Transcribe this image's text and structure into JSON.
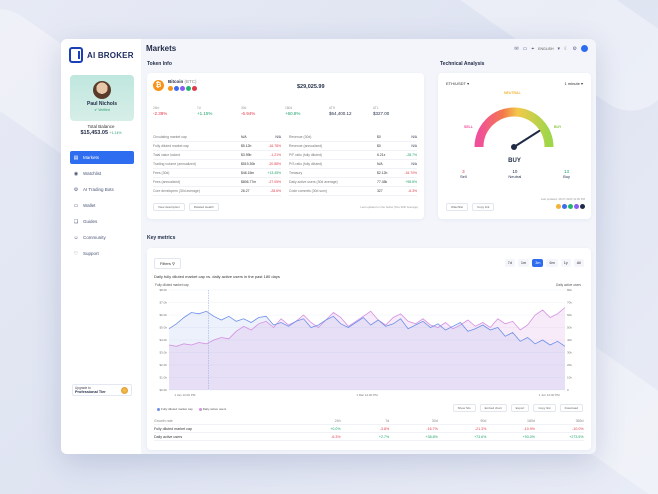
{
  "app": {
    "brand": "AI BROKER",
    "page_title": "Markets"
  },
  "topbar": {
    "language": "ENGLISH"
  },
  "profile": {
    "name": "Paul Nichols",
    "verified": "Verified"
  },
  "balance": {
    "label": "Total Balance",
    "amount": "$15,453.05",
    "change": "+1.14%"
  },
  "nav": {
    "items": [
      {
        "label": "Markets",
        "icon": "chart-icon",
        "glyph": "▤"
      },
      {
        "label": "Watchlist",
        "icon": "eye-icon",
        "glyph": "◉"
      },
      {
        "label": "AI Trading Bots",
        "icon": "bot-icon",
        "glyph": "⚙"
      },
      {
        "label": "Wallet",
        "icon": "wallet-icon",
        "glyph": "▭"
      },
      {
        "label": "Guides",
        "icon": "book-icon",
        "glyph": "❏"
      },
      {
        "label": "Community",
        "icon": "people-icon",
        "glyph": "☺"
      },
      {
        "label": "Support",
        "icon": "heart-icon",
        "glyph": "♡"
      }
    ]
  },
  "upgrade": {
    "small": "Upgrade to",
    "tier": "Professional Tier"
  },
  "token_info": {
    "section_title": "Token Info",
    "name": "Bitcoin",
    "ticker": "(BTC)",
    "price": "$29,025.99",
    "changes": [
      {
        "label": "24hr",
        "value": "-2.39%",
        "tone": "neg"
      },
      {
        "label": "7d",
        "value": "+1.15%",
        "tone": "pos"
      },
      {
        "label": "30d",
        "value": "-6.94%",
        "tone": "neg"
      },
      {
        "label": "180d",
        "value": "+60.8%",
        "tone": "pos"
      },
      {
        "label": "ATH",
        "value": "$64,400.12",
        "tone": "none"
      },
      {
        "label": "ATL",
        "value": "$327.00",
        "tone": "none"
      }
    ],
    "stats_left": [
      {
        "label": "Circulating market cap",
        "value": "N/A",
        "change": "N/A",
        "tone": "none"
      },
      {
        "label": "Fully diluted market cap",
        "value": "$5.12b",
        "change": "-16.78%",
        "tone": "neg"
      },
      {
        "label": "Total value locked",
        "value": "$3.99b",
        "change": "-1.21%",
        "tone": "neg"
      },
      {
        "label": "Trading volume (annualized)",
        "value": "$519.30b",
        "change": "-20.88%",
        "tone": "neg"
      },
      {
        "label": "Fees (30d)",
        "value": "$46.15m",
        "change": "+13.45%",
        "tone": "pos"
      },
      {
        "label": "Fees (annualized)",
        "value": "$806.77m",
        "change": "-27.05%",
        "tone": "neg"
      },
      {
        "label": "Core developers (30d average)",
        "value": "26.27",
        "change": "-28.6%",
        "tone": "neg"
      }
    ],
    "stats_right": [
      {
        "label": "Revenue (30d)",
        "value": "$0",
        "change": "N/A",
        "tone": "none"
      },
      {
        "label": "Revenue (annualized)",
        "value": "$0",
        "change": "N/A",
        "tone": "none"
      },
      {
        "label": "P/F ratio (fully diluted)",
        "value": "6.21x",
        "change": "-28.7%",
        "tone": "pos"
      },
      {
        "label": "P/S ratio (fully diluted)",
        "value": "N/A",
        "change": "N/A",
        "tone": "none"
      },
      {
        "label": "Treasury",
        "value": "$2.12b",
        "change": "-16.70%",
        "tone": "neg"
      },
      {
        "label": "Daily active users (30d average)",
        "value": "77.45k",
        "change": "+98.8%",
        "tone": "pos"
      },
      {
        "label": "Code commits (30d sum)",
        "value": "327",
        "change": "-6.3%",
        "tone": "neg"
      }
    ],
    "buttons": [
      "View description",
      "Related Health"
    ],
    "note": "Last updated on the below (Nov 30th Average)"
  },
  "technical_analysis": {
    "section_title": "Technical Analysis",
    "pair": "ETH/USDT",
    "interval": "1 minute",
    "gauge_labels": {
      "sell": "SELL",
      "neutral": "NEUTRAL",
      "buy": "BUY"
    },
    "gauge_value": 0.82,
    "verdict": "BUY",
    "counts": [
      {
        "n": "3",
        "label": "Sell",
        "tone": "neg"
      },
      {
        "n": "10",
        "label": "Neutral",
        "tone": "none"
      },
      {
        "n": "13",
        "label": "Buy",
        "tone": "pos"
      }
    ],
    "buttons": [
      "Watchlist",
      "Copy link"
    ],
    "note": "Last updated: 28.07.2023 11:00 PM"
  },
  "key_metrics": {
    "section_title": "Key metrics",
    "filters_label": "Filters",
    "ranges": [
      "7d",
      "1m",
      "3m",
      "6m",
      "1y",
      "All"
    ],
    "active_range": "3m",
    "chart_title": "Daily fully diluted market cap vs. daily active users in the past 180 days",
    "buttons": [
      "Show hits",
      "Embed chart",
      "Export",
      "Copy link",
      "Download"
    ],
    "growth": {
      "header": [
        "Growth rate",
        "24h",
        "7d",
        "30d",
        "90d",
        "180d",
        "365d"
      ],
      "rows": [
        {
          "label": "Fully diluted market cap",
          "values": [
            "+0.0%",
            "-3.8%",
            "-16.7%",
            "-21.3%",
            "-10.9%",
            "-10.0%"
          ],
          "tones": [
            "pos",
            "neg",
            "neg",
            "neg",
            "neg",
            "neg"
          ]
        },
        {
          "label": "Daily active users",
          "values": [
            "-6.3%",
            "+2.7%",
            "+38.8%",
            "+73.6%",
            "+93.0%",
            "+273.5%"
          ],
          "tones": [
            "neg",
            "pos",
            "pos",
            "pos",
            "pos",
            "pos"
          ]
        }
      ]
    }
  },
  "chart_data": {
    "type": "line",
    "title": "Daily fully diluted market cap vs. daily active users in the past 180 days",
    "ylabel_left": "Fully diluted market cap",
    "ylabel_right": "Daily active users",
    "y_left_ticks": [
      "$8.0b",
      "$7.0b",
      "$6.0b",
      "$5.0b",
      "$4.0b",
      "$3.0b",
      "$2.0b",
      "$1.0b",
      "$0.0b"
    ],
    "y_right_ticks": [
      "80k",
      "70k",
      "60k",
      "50k",
      "40k",
      "30k",
      "20k",
      "10k",
      "0"
    ],
    "x_ticks": [
      "1 Jan 12:00 PM",
      "1 Mar 12:00 PM",
      "1 Jun 12:00 PM"
    ],
    "ylim_left": [
      0,
      8
    ],
    "ylim_right": [
      0,
      80
    ],
    "legend_position": "bottom-left",
    "series": [
      {
        "name": "Fully diluted market cap",
        "color": "#6d8fe8",
        "values": [
          4.9,
          5.3,
          5.8,
          6.2,
          6.1,
          6.3,
          5.9,
          5.6,
          5.9,
          5.5,
          5.7,
          5.4,
          5.8,
          5.9,
          5.2,
          5.4,
          5.1,
          5.5,
          5.7,
          5.0,
          5.2,
          5.6,
          5.9,
          5.3,
          5.0,
          5.4,
          5.8,
          5.2,
          5.6,
          5.1,
          5.3,
          5.7,
          4.9,
          5.2,
          5.5,
          5.0,
          5.3,
          4.8,
          5.1,
          5.4,
          4.7,
          4.9,
          5.2,
          4.8,
          5.0,
          4.3,
          4.6,
          3.9,
          4.2,
          3.7,
          4.0,
          3.6,
          3.9,
          3.5
        ]
      },
      {
        "name": "Daily active users",
        "color": "#d48fe0",
        "values": [
          36,
          35,
          37,
          36,
          38,
          37,
          40,
          42,
          41,
          47,
          51,
          48,
          53,
          55,
          50,
          57,
          52,
          55,
          60,
          54,
          50,
          56,
          62,
          58,
          51,
          55,
          59,
          63,
          56,
          52,
          58,
          61,
          55,
          53,
          57,
          52,
          50,
          54,
          49,
          52,
          56,
          51,
          54,
          50,
          57,
          53,
          55,
          48,
          52,
          60,
          64,
          58,
          61,
          66
        ]
      }
    ]
  }
}
